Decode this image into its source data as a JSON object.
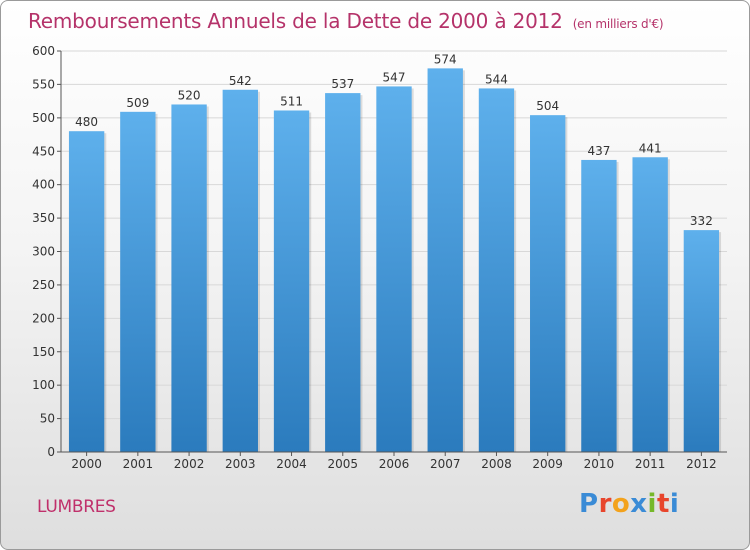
{
  "chart_data": {
    "type": "bar",
    "title": "Remboursements Annuels de la Dette de 2000 à 2012",
    "unit": "(en milliers d'€)",
    "categories": [
      "2000",
      "2001",
      "2002",
      "2003",
      "2004",
      "2005",
      "2006",
      "2007",
      "2008",
      "2009",
      "2010",
      "2011",
      "2012"
    ],
    "values": [
      480,
      509,
      520,
      542,
      511,
      537,
      547,
      574,
      544,
      504,
      437,
      441,
      332
    ],
    "ylim": [
      0,
      600
    ],
    "yticks": [
      0,
      50,
      100,
      150,
      200,
      250,
      300,
      350,
      400,
      450,
      500,
      550,
      600
    ],
    "grid": true,
    "bar_color_top": "#5eb0ec",
    "bar_color_bottom": "#2b7bbd"
  },
  "footer": {
    "city": "LUMBRES",
    "logo_letters": [
      "P",
      "r",
      "o",
      "x",
      "i",
      "t",
      "i"
    ],
    "logo_colors": [
      "#3a8bd6",
      "#e8452c",
      "#f3a21c",
      "#3a8bd6",
      "#76b82a",
      "#e8452c",
      "#3a8bd6"
    ]
  }
}
